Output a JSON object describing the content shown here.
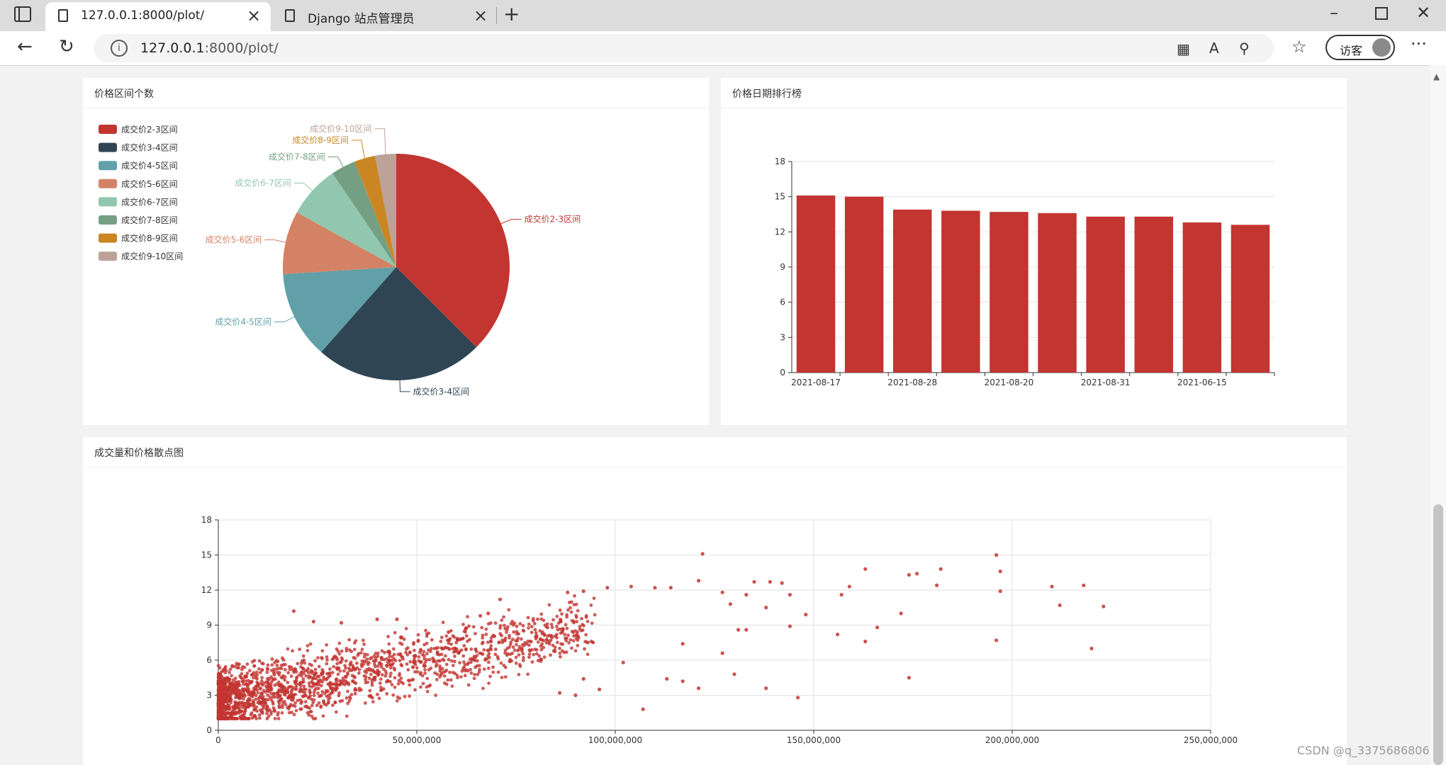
{
  "browser": {
    "tabs": [
      {
        "title": "127.0.0.1:8000/plot/",
        "active": true
      },
      {
        "title": "Django 站点管理员",
        "active": false
      }
    ],
    "url_host": "127.0.0.1",
    "url_rest": ":8000/plot/",
    "guest_label": "访客"
  },
  "pie_panel": {
    "title": "价格区间个数",
    "chart_data": {
      "type": "pie",
      "legend_position": "top-left",
      "slices": [
        {
          "name": "成交价2-3区间",
          "value": 37.5,
          "color": "#c23531"
        },
        {
          "name": "成交价3-4区间",
          "value": 24.0,
          "color": "#2f4554"
        },
        {
          "name": "成交价4-5区间",
          "value": 12.5,
          "color": "#61a0a8"
        },
        {
          "name": "成交价5-6区间",
          "value": 9.0,
          "color": "#d48265"
        },
        {
          "name": "成交价6-7区间",
          "value": 7.5,
          "color": "#91c7ae"
        },
        {
          "name": "成交价7-8区间",
          "value": 3.5,
          "color": "#749f83"
        },
        {
          "name": "成交价8-9区间",
          "value": 3.0,
          "color": "#ca8622"
        },
        {
          "name": "成交价9-10区间",
          "value": 3.0,
          "color": "#bda29a"
        }
      ]
    }
  },
  "bar_panel": {
    "title": "价格日期排行榜",
    "chart_data": {
      "type": "bar",
      "categories": [
        "2021-08-17",
        "",
        "2021-08-28",
        "",
        "2021-08-20",
        "",
        "2021-08-31",
        "",
        "2021-06-15",
        ""
      ],
      "values": [
        15.1,
        15.0,
        13.9,
        13.8,
        13.7,
        13.6,
        13.3,
        13.3,
        12.8,
        12.6
      ],
      "ylim": [
        0,
        18
      ],
      "yticks": [
        "0",
        "3",
        "6",
        "9",
        "12",
        "15",
        "18"
      ],
      "grid": true,
      "color": "#c23531"
    }
  },
  "scatter_panel": {
    "title": "成交量和价格散点图",
    "chart_data": {
      "type": "scatter",
      "xlim": [
        0,
        250000000
      ],
      "ylim": [
        0,
        18
      ],
      "xticks": [
        "0",
        "50,000,000",
        "100,000,000",
        "150,000,000",
        "200,000,000",
        "250,000,000"
      ],
      "yticks": [
        "0",
        "3",
        "6",
        "9",
        "12",
        "15",
        "18"
      ],
      "grid": true,
      "color": "#c23531",
      "points": [
        [
          122000000,
          15.1
        ],
        [
          196000000,
          15.0
        ],
        [
          163000000,
          13.8
        ],
        [
          182000000,
          13.8
        ],
        [
          197000000,
          13.6
        ],
        [
          176000000,
          13.4
        ],
        [
          174000000,
          13.3
        ],
        [
          121000000,
          12.8
        ],
        [
          135000000,
          12.7
        ],
        [
          139000000,
          12.7
        ],
        [
          142000000,
          12.6
        ],
        [
          210000000,
          12.3
        ],
        [
          218000000,
          12.4
        ],
        [
          181000000,
          12.4
        ],
        [
          197000000,
          11.9
        ],
        [
          159000000,
          12.3
        ],
        [
          127000000,
          11.8
        ],
        [
          133000000,
          11.6
        ],
        [
          144000000,
          11.6
        ],
        [
          157000000,
          11.6
        ],
        [
          98000000,
          12.2
        ],
        [
          104000000,
          12.3
        ],
        [
          110000000,
          12.2
        ],
        [
          114000000,
          12.2
        ],
        [
          92000000,
          11.9
        ],
        [
          88000000,
          11.8
        ],
        [
          212000000,
          10.7
        ],
        [
          223000000,
          10.6
        ],
        [
          148000000,
          9.9
        ],
        [
          172000000,
          10.0
        ],
        [
          138000000,
          10.5
        ],
        [
          129000000,
          10.8
        ],
        [
          166000000,
          8.8
        ],
        [
          144000000,
          8.9
        ],
        [
          131000000,
          8.6
        ],
        [
          133000000,
          8.6
        ],
        [
          174000000,
          4.5
        ],
        [
          196000000,
          7.7
        ],
        [
          220000000,
          7.0
        ],
        [
          163000000,
          7.6
        ],
        [
          156000000,
          8.2
        ],
        [
          138000000,
          3.6
        ],
        [
          146000000,
          2.8
        ],
        [
          107000000,
          1.8
        ],
        [
          117000000,
          7.4
        ],
        [
          127000000,
          6.6
        ],
        [
          121000000,
          3.6
        ],
        [
          130000000,
          4.8
        ],
        [
          113000000,
          4.4
        ],
        [
          117000000,
          4.2
        ],
        [
          102000000,
          5.8
        ],
        [
          96000000,
          3.5
        ],
        [
          92000000,
          4.4
        ],
        [
          86000000,
          3.2
        ],
        [
          90000000,
          3.0
        ],
        [
          71000000,
          11.2
        ],
        [
          68000000,
          10.0
        ],
        [
          66000000,
          9.8
        ],
        [
          58000000,
          8.4
        ],
        [
          61000000,
          7.8
        ],
        [
          19000000,
          10.2
        ],
        [
          24000000,
          9.3
        ],
        [
          31000000,
          9.2
        ],
        [
          40000000,
          9.5
        ],
        [
          45000000,
          9.5
        ]
      ]
    }
  },
  "watermark": "CSDN @q_3375686806"
}
